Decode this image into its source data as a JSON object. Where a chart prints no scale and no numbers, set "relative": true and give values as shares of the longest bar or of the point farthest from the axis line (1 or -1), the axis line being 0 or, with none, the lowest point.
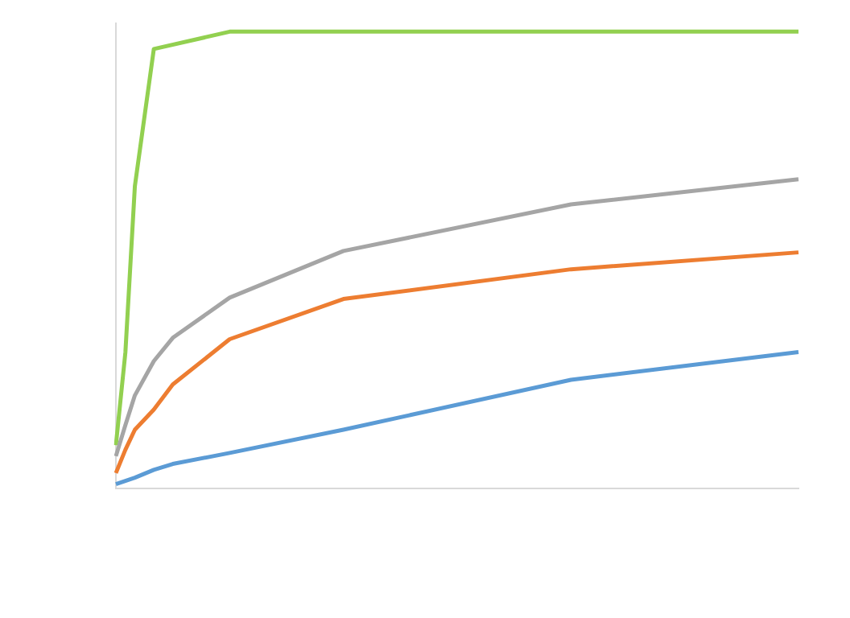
{
  "chart_data": {
    "type": "line",
    "relative": true,
    "marker": "none",
    "legend": false,
    "grid": false,
    "categories": [
      null,
      null,
      null,
      null,
      null,
      null,
      null,
      null,
      null,
      null,
      null,
      null,
      null,
      null,
      null,
      null,
      null,
      null,
      null,
      null,
      null,
      null,
      null,
      null,
      null,
      null,
      null,
      null,
      null,
      null,
      null,
      null,
      null,
      null,
      null,
      null,
      null,
      null,
      null,
      null,
      null,
      null,
      null,
      null,
      null,
      null,
      null,
      null,
      null,
      null,
      null,
      null,
      null,
      null,
      null,
      null,
      null,
      null,
      null,
      null,
      null,
      null,
      null,
      null,
      null,
      null,
      null,
      null,
      null,
      null,
      null,
      null,
      null
    ],
    "series": [
      {
        "color": "#5b9bd5",
        "values": [
          0.01,
          null,
          0.024,
          null,
          0.041,
          null,
          0.054,
          null,
          null,
          null,
          null,
          null,
          0.078,
          null,
          null,
          null,
          null,
          null,
          null,
          null,
          null,
          null,
          null,
          null,
          0.129,
          null,
          null,
          null,
          null,
          null,
          null,
          null,
          null,
          null,
          null,
          null,
          null,
          null,
          null,
          null,
          null,
          null,
          null,
          null,
          null,
          null,
          null,
          null,
          0.238,
          null,
          null,
          null,
          null,
          null,
          null,
          null,
          null,
          null,
          null,
          null,
          null,
          null,
          null,
          null,
          null,
          null,
          null,
          null,
          null,
          null,
          null,
          null,
          0.299
        ]
      },
      {
        "color": "#ed7d31",
        "values": [
          0.034,
          0.085,
          0.129,
          null,
          0.173,
          null,
          0.228,
          null,
          null,
          null,
          null,
          null,
          0.327,
          null,
          null,
          null,
          null,
          null,
          null,
          null,
          null,
          null,
          null,
          null,
          0.415,
          null,
          null,
          null,
          null,
          null,
          null,
          null,
          null,
          null,
          null,
          null,
          null,
          null,
          null,
          null,
          null,
          null,
          null,
          null,
          null,
          null,
          null,
          null,
          0.48,
          null,
          null,
          null,
          null,
          null,
          null,
          null,
          null,
          null,
          null,
          null,
          null,
          null,
          null,
          null,
          null,
          null,
          null,
          null,
          null,
          null,
          null,
          null,
          0.517
        ]
      },
      {
        "color": "#a5a5a5",
        "values": [
          0.071,
          0.139,
          0.204,
          null,
          0.279,
          null,
          0.33,
          null,
          null,
          null,
          null,
          null,
          0.418,
          null,
          null,
          null,
          null,
          null,
          null,
          null,
          null,
          null,
          null,
          null,
          0.52,
          null,
          null,
          null,
          null,
          null,
          null,
          null,
          null,
          null,
          null,
          null,
          null,
          null,
          null,
          null,
          null,
          null,
          null,
          null,
          null,
          null,
          null,
          null,
          0.622,
          null,
          null,
          null,
          null,
          null,
          null,
          null,
          null,
          null,
          null,
          null,
          null,
          null,
          null,
          null,
          null,
          null,
          null,
          null,
          null,
          null,
          null,
          null,
          0.677
        ]
      },
      {
        "color": "#92d050",
        "values": [
          0.095,
          0.298,
          0.662,
          null,
          0.962,
          null,
          null,
          null,
          null,
          null,
          null,
          null,
          1,
          null,
          null,
          null,
          null,
          null,
          null,
          null,
          null,
          null,
          null,
          null,
          1,
          null,
          null,
          null,
          null,
          null,
          null,
          null,
          null,
          null,
          null,
          null,
          null,
          null,
          null,
          null,
          null,
          null,
          null,
          null,
          null,
          null,
          null,
          null,
          1,
          null,
          null,
          null,
          null,
          null,
          null,
          null,
          null,
          null,
          null,
          null,
          null,
          null,
          null,
          null,
          null,
          null,
          null,
          null,
          null,
          null,
          null,
          null,
          1
        ]
      }
    ]
  }
}
